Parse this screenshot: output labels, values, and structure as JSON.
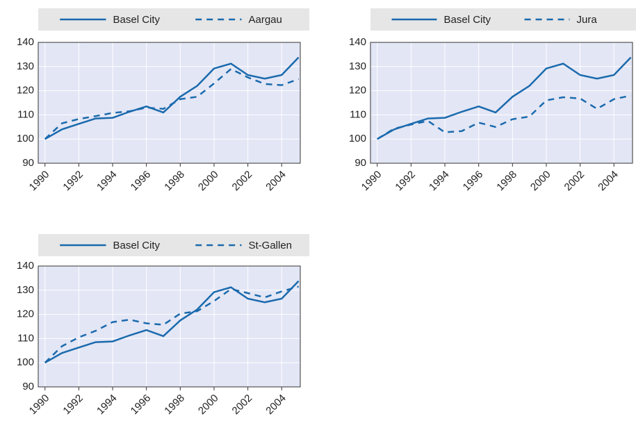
{
  "chart_data": [
    {
      "type": "line",
      "x": [
        1990,
        1991,
        1992,
        1993,
        1994,
        1995,
        1996,
        1997,
        1998,
        1999,
        2000,
        2001,
        2002,
        2003,
        2004,
        2005
      ],
      "series": [
        {
          "name": "Basel City",
          "color": "#1a6aad",
          "line_style": "solid",
          "values": [
            100,
            104,
            106.3,
            108.5,
            108.8,
            111.3,
            113.5,
            111,
            117.5,
            122,
            129.2,
            131.2,
            126.5,
            125,
            126.5,
            133.8
          ]
        },
        {
          "name": "Aargau",
          "color": "#1a6aad",
          "line_style": "dashed",
          "values": [
            100,
            106.5,
            108.3,
            109.5,
            110.8,
            111.5,
            113,
            112.5,
            116.5,
            117.5,
            123,
            129,
            125.5,
            122.8,
            122.3,
            124.8
          ]
        }
      ],
      "xlim": [
        1989.6,
        2005.1
      ],
      "xticks": [
        1990,
        1992,
        1994,
        1996,
        1998,
        2000,
        2002,
        2004
      ],
      "ylim": [
        90,
        140
      ],
      "yticks": [
        90,
        100,
        110,
        120,
        130,
        140
      ],
      "grid": true
    },
    {
      "type": "line",
      "x": [
        1990,
        1991,
        1992,
        1993,
        1994,
        1995,
        1996,
        1997,
        1998,
        1999,
        2000,
        2001,
        2002,
        2003,
        2004,
        2005
      ],
      "series": [
        {
          "name": "Basel City",
          "color": "#1a6aad",
          "line_style": "solid",
          "values": [
            100,
            104,
            106.3,
            108.5,
            108.8,
            111.3,
            113.5,
            111,
            117.5,
            122,
            129.2,
            131.2,
            126.5,
            125,
            126.5,
            133.8
          ]
        },
        {
          "name": "Jura",
          "color": "#1a6aad",
          "line_style": "dashed",
          "values": [
            100,
            104.3,
            106,
            107.5,
            102.8,
            103.3,
            106.8,
            105,
            108.2,
            109.3,
            116,
            117.3,
            116.8,
            112.5,
            116.5,
            118
          ]
        }
      ],
      "xlim": [
        1989.6,
        2005.1
      ],
      "xticks": [
        1990,
        1992,
        1994,
        1996,
        1998,
        2000,
        2002,
        2004
      ],
      "ylim": [
        90,
        140
      ],
      "yticks": [
        90,
        100,
        110,
        120,
        130,
        140
      ],
      "grid": true
    },
    {
      "type": "line",
      "x": [
        1990,
        1991,
        1992,
        1993,
        1994,
        1995,
        1996,
        1997,
        1998,
        1999,
        2000,
        2001,
        2002,
        2003,
        2004,
        2005
      ],
      "series": [
        {
          "name": "Basel City",
          "color": "#1a6aad",
          "line_style": "solid",
          "values": [
            100,
            104,
            106.3,
            108.5,
            108.8,
            111.3,
            113.5,
            111,
            117.5,
            122,
            129.2,
            131.2,
            126.5,
            125,
            126.5,
            133.8
          ]
        },
        {
          "name": "St-Gallen",
          "color": "#1a6aad",
          "line_style": "dashed",
          "values": [
            100,
            106.8,
            110.5,
            113.2,
            116.8,
            117.8,
            116.3,
            115.7,
            120.3,
            121.3,
            125.5,
            130.5,
            128.8,
            127,
            129.5,
            131.5
          ]
        }
      ],
      "xlim": [
        1989.6,
        2005.1
      ],
      "xticks": [
        1990,
        1992,
        1994,
        1996,
        1998,
        2000,
        2002,
        2004
      ],
      "ylim": [
        90,
        140
      ],
      "yticks": [
        90,
        100,
        110,
        120,
        130,
        140
      ],
      "grid": true
    }
  ]
}
